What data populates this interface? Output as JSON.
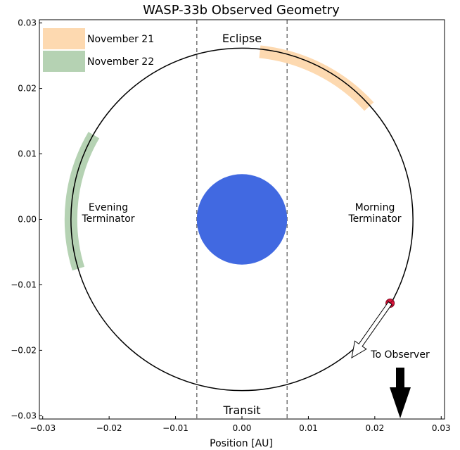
{
  "chart_data": {
    "type": "scatter",
    "title": "WASP-33b Observed Geometry",
    "xlabel": "Position [AU]",
    "ylabel": "",
    "xlim": [
      -0.0305,
      0.0305
    ],
    "ylim": [
      -0.0305,
      0.0305
    ],
    "x_ticks": [
      -0.03,
      -0.02,
      -0.01,
      0.0,
      0.01,
      0.02,
      0.03
    ],
    "x_tick_labels": [
      "−0.03",
      "−0.02",
      "−0.01",
      "0.00",
      "0.01",
      "0.02",
      "0.03"
    ],
    "y_ticks": [
      0.03,
      0.02,
      0.01,
      0.0,
      -0.01,
      -0.02,
      -0.03
    ],
    "y_tick_labels": [
      "0.03",
      "0.02",
      "0.01",
      "0.00",
      "−0.01",
      "−0.02",
      "−0.03"
    ],
    "grid": false,
    "legend_position": "top-left",
    "star": {
      "x": 0.0,
      "y": 0.0,
      "radius": 0.0068,
      "color": "#4169e1"
    },
    "orbit": {
      "radius": 0.02575,
      "color": "#000000"
    },
    "eclipse_lines_x": [
      -0.0068,
      0.0068
    ],
    "planet": {
      "x": 0.0223,
      "y": -0.0128,
      "color": "#dc143c"
    },
    "series": [
      {
        "name": "November 21",
        "color": "#fdd9b0",
        "angle_start_deg": 6,
        "angle_end_deg": 48
      },
      {
        "name": "November 22",
        "color": "#b5d2b3",
        "angle_start_deg": 253,
        "angle_end_deg": 300
      }
    ],
    "annotations": [
      {
        "id": "eclipse",
        "text": "Eclipse"
      },
      {
        "id": "transit",
        "text": "Transit"
      },
      {
        "id": "evening",
        "lines": [
          "Evening",
          "Terminator"
        ]
      },
      {
        "id": "morning",
        "lines": [
          "Morning",
          "Terminator"
        ]
      },
      {
        "id": "observer",
        "text": "To Observer"
      }
    ]
  }
}
